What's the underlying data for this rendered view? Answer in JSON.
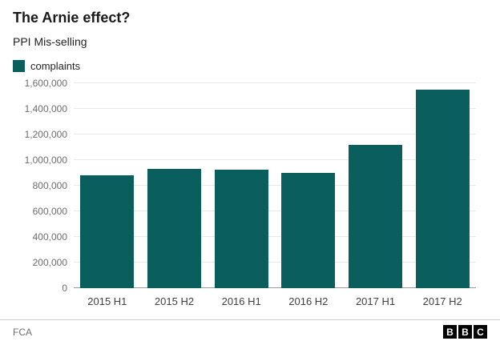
{
  "header": {
    "title": "The Arnie effect?",
    "subtitle": "PPI Mis-selling"
  },
  "legend": {
    "label": "complaints",
    "color": "#0a5e5e"
  },
  "chart_data": {
    "type": "bar",
    "title": "The Arnie effect?",
    "subtitle": "PPI Mis-selling",
    "series_name": "complaints",
    "categories": [
      "2015 H1",
      "2015 H2",
      "2016 H1",
      "2016 H2",
      "2017 H1",
      "2017 H2"
    ],
    "values": [
      880000,
      930000,
      925000,
      900000,
      1120000,
      1550000
    ],
    "xlabel": "",
    "ylabel": "",
    "ylim": [
      0,
      1600000
    ],
    "yticks": [
      0,
      200000,
      400000,
      600000,
      800000,
      1000000,
      1200000,
      1400000,
      1600000
    ],
    "bar_color": "#0a5e5e",
    "grid": "horizontal",
    "legend_position": "top-left"
  },
  "footer": {
    "source": "FCA",
    "logo_letters": [
      "B",
      "B",
      "C"
    ]
  }
}
